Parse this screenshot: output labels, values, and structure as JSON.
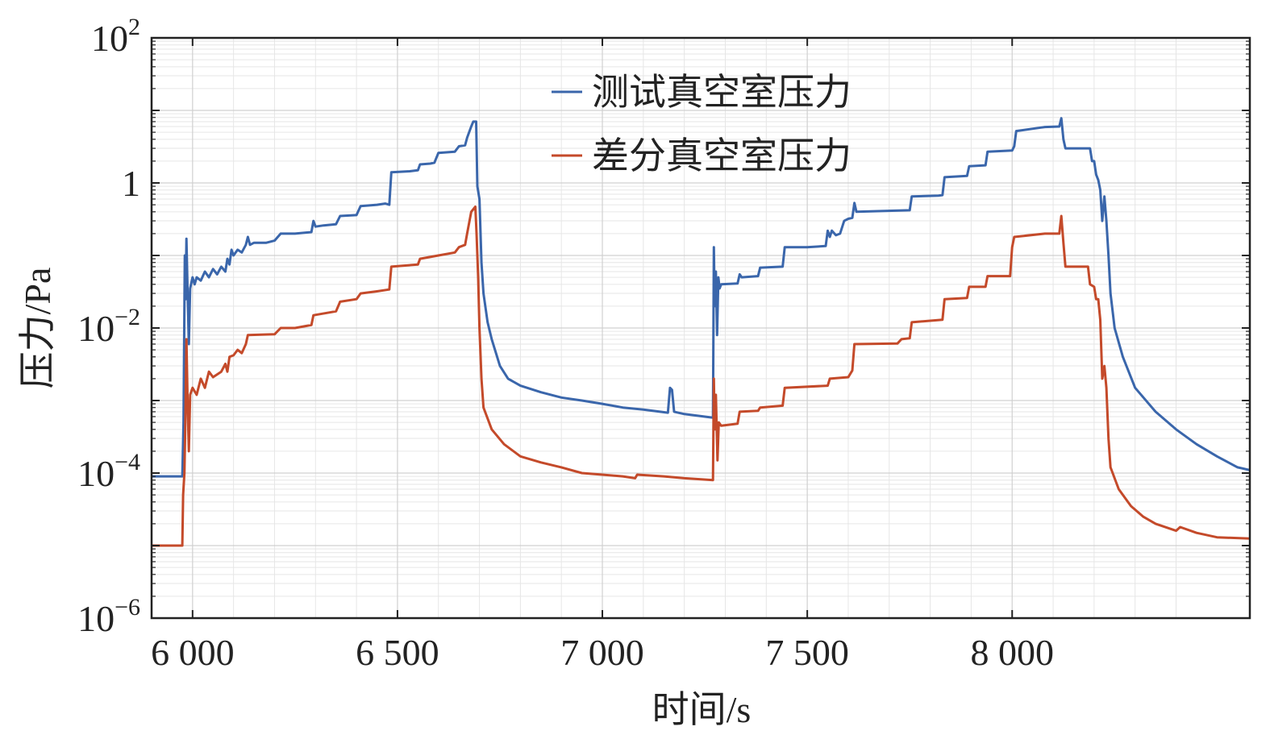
{
  "chart_data": {
    "type": "line",
    "xlabel": "时间/s",
    "ylabel": "压力/Pa",
    "xlim": [
      5900,
      8580
    ],
    "ylim_log10": [
      -6,
      2
    ],
    "yscale": "log",
    "grid": true,
    "legend_position": "top-center",
    "x_ticks": [
      {
        "value": 6000,
        "label": "6 000"
      },
      {
        "value": 6500,
        "label": "6 500"
      },
      {
        "value": 7000,
        "label": "7 000"
      },
      {
        "value": 7500,
        "label": "7 500"
      },
      {
        "value": 8000,
        "label": "8 000"
      }
    ],
    "y_ticks": [
      {
        "value": 100,
        "base": "10",
        "exp": "2"
      },
      {
        "value": 1,
        "base": "1",
        "exp": ""
      },
      {
        "value": 0.01,
        "base": "10",
        "exp": "−2"
      },
      {
        "value": 0.0001,
        "base": "10",
        "exp": "−4"
      },
      {
        "value": 1e-06,
        "base": "10",
        "exp": "−6"
      }
    ],
    "series": [
      {
        "name": "测试真空室压力",
        "color": "#3a66ab",
        "points": [
          [
            5900,
            9e-05
          ],
          [
            5975,
            9e-05
          ],
          [
            5978,
            0.0005
          ],
          [
            5981,
            0.1
          ],
          [
            5983,
            0.025
          ],
          [
            5985,
            0.17
          ],
          [
            5988,
            0.03
          ],
          [
            5991,
            0.006
          ],
          [
            5994,
            0.035
          ],
          [
            6000,
            0.05
          ],
          [
            6005,
            0.04
          ],
          [
            6010,
            0.05
          ],
          [
            6020,
            0.045
          ],
          [
            6030,
            0.06
          ],
          [
            6040,
            0.05
          ],
          [
            6050,
            0.065
          ],
          [
            6060,
            0.055
          ],
          [
            6070,
            0.07
          ],
          [
            6080,
            0.06
          ],
          [
            6085,
            0.09
          ],
          [
            6090,
            0.075
          ],
          [
            6095,
            0.12
          ],
          [
            6100,
            0.1
          ],
          [
            6110,
            0.12
          ],
          [
            6120,
            0.11
          ],
          [
            6130,
            0.14
          ],
          [
            6135,
            0.18
          ],
          [
            6140,
            0.14
          ],
          [
            6150,
            0.15
          ],
          [
            6180,
            0.15
          ],
          [
            6200,
            0.16
          ],
          [
            6215,
            0.2
          ],
          [
            6250,
            0.2
          ],
          [
            6290,
            0.21
          ],
          [
            6295,
            0.3
          ],
          [
            6300,
            0.25
          ],
          [
            6320,
            0.26
          ],
          [
            6350,
            0.27
          ],
          [
            6360,
            0.35
          ],
          [
            6400,
            0.36
          ],
          [
            6410,
            0.48
          ],
          [
            6450,
            0.5
          ],
          [
            6470,
            0.52
          ],
          [
            6480,
            0.5
          ],
          [
            6485,
            1.4
          ],
          [
            6530,
            1.45
          ],
          [
            6550,
            1.5
          ],
          [
            6555,
            1.8
          ],
          [
            6580,
            1.85
          ],
          [
            6590,
            1.9
          ],
          [
            6600,
            2.6
          ],
          [
            6640,
            2.7
          ],
          [
            6650,
            3.2
          ],
          [
            6665,
            3.3
          ],
          [
            6670,
            4.2
          ],
          [
            6680,
            6.0
          ],
          [
            6685,
            7.0
          ],
          [
            6692,
            7.0
          ],
          [
            6695,
            0.9
          ],
          [
            6700,
            0.6
          ],
          [
            6705,
            0.08
          ],
          [
            6710,
            0.03
          ],
          [
            6720,
            0.012
          ],
          [
            6730,
            0.007
          ],
          [
            6750,
            0.003
          ],
          [
            6770,
            0.002
          ],
          [
            6800,
            0.0016
          ],
          [
            6850,
            0.0013
          ],
          [
            6900,
            0.0011
          ],
          [
            6950,
            0.001
          ],
          [
            7000,
            0.0009
          ],
          [
            7050,
            0.0008
          ],
          [
            7100,
            0.00075
          ],
          [
            7160,
            0.00068
          ],
          [
            7165,
            0.0015
          ],
          [
            7170,
            0.0014
          ],
          [
            7175,
            0.0007
          ],
          [
            7200,
            0.00065
          ],
          [
            7250,
            0.0006
          ],
          [
            7270,
            0.00058
          ],
          [
            7272,
            0.13
          ],
          [
            7274,
            0.02
          ],
          [
            7277,
            0.06
          ],
          [
            7280,
            0.008
          ],
          [
            7283,
            0.05
          ],
          [
            7286,
            0.035
          ],
          [
            7290,
            0.04
          ],
          [
            7330,
            0.041
          ],
          [
            7335,
            0.055
          ],
          [
            7340,
            0.05
          ],
          [
            7380,
            0.052
          ],
          [
            7385,
            0.068
          ],
          [
            7440,
            0.07
          ],
          [
            7445,
            0.13
          ],
          [
            7500,
            0.13
          ],
          [
            7545,
            0.135
          ],
          [
            7550,
            0.22
          ],
          [
            7555,
            0.18
          ],
          [
            7560,
            0.22
          ],
          [
            7570,
            0.19
          ],
          [
            7580,
            0.2
          ],
          [
            7590,
            0.3
          ],
          [
            7600,
            0.32
          ],
          [
            7610,
            0.33
          ],
          [
            7615,
            0.53
          ],
          [
            7620,
            0.4
          ],
          [
            7750,
            0.42
          ],
          [
            7755,
            0.65
          ],
          [
            7820,
            0.67
          ],
          [
            7830,
            0.68
          ],
          [
            7835,
            1.2
          ],
          [
            7890,
            1.25
          ],
          [
            7895,
            1.7
          ],
          [
            7935,
            1.75
          ],
          [
            7940,
            2.7
          ],
          [
            8000,
            2.8
          ],
          [
            8005,
            3.2
          ],
          [
            8010,
            5.2
          ],
          [
            8070,
            5.8
          ],
          [
            8080,
            5.9
          ],
          [
            8115,
            6.0
          ],
          [
            8120,
            7.8
          ],
          [
            8125,
            4.0
          ],
          [
            8130,
            3.0
          ],
          [
            8190,
            3.0
          ],
          [
            8195,
            2.0
          ],
          [
            8200,
            2.0
          ],
          [
            8205,
            1.3
          ],
          [
            8210,
            1.1
          ],
          [
            8215,
            0.8
          ],
          [
            8220,
            0.3
          ],
          [
            8225,
            0.65
          ],
          [
            8230,
            0.3
          ],
          [
            8235,
            0.1
          ],
          [
            8240,
            0.03
          ],
          [
            8250,
            0.01
          ],
          [
            8270,
            0.004
          ],
          [
            8300,
            0.0015
          ],
          [
            8350,
            0.0007
          ],
          [
            8400,
            0.0004
          ],
          [
            8450,
            0.00025
          ],
          [
            8500,
            0.00017
          ],
          [
            8550,
            0.00012
          ],
          [
            8580,
            0.00011
          ]
        ]
      },
      {
        "name": "差分真空室压力",
        "color": "#c44a2a",
        "points": [
          [
            5900,
            1e-05
          ],
          [
            5975,
            1e-05
          ],
          [
            5977,
            5e-05
          ],
          [
            5980,
            0.0001
          ],
          [
            5982,
            0.0004
          ],
          [
            5985,
            0.007
          ],
          [
            5988,
            0.0009
          ],
          [
            5991,
            0.0002
          ],
          [
            5994,
            0.0012
          ],
          [
            6000,
            0.0015
          ],
          [
            6010,
            0.0012
          ],
          [
            6020,
            0.002
          ],
          [
            6030,
            0.0015
          ],
          [
            6040,
            0.0025
          ],
          [
            6050,
            0.0021
          ],
          [
            6070,
            0.0025
          ],
          [
            6080,
            0.0032
          ],
          [
            6085,
            0.0025
          ],
          [
            6090,
            0.004
          ],
          [
            6100,
            0.0042
          ],
          [
            6110,
            0.005
          ],
          [
            6120,
            0.0045
          ],
          [
            6130,
            0.006
          ],
          [
            6135,
            0.008
          ],
          [
            6200,
            0.0082
          ],
          [
            6215,
            0.01
          ],
          [
            6250,
            0.01
          ],
          [
            6290,
            0.011
          ],
          [
            6295,
            0.015
          ],
          [
            6350,
            0.017
          ],
          [
            6360,
            0.023
          ],
          [
            6400,
            0.025
          ],
          [
            6410,
            0.03
          ],
          [
            6450,
            0.032
          ],
          [
            6480,
            0.034
          ],
          [
            6485,
            0.07
          ],
          [
            6550,
            0.075
          ],
          [
            6555,
            0.09
          ],
          [
            6600,
            0.1
          ],
          [
            6640,
            0.11
          ],
          [
            6650,
            0.13
          ],
          [
            6665,
            0.14
          ],
          [
            6670,
            0.2
          ],
          [
            6680,
            0.4
          ],
          [
            6690,
            0.47
          ],
          [
            6693,
            0.2
          ],
          [
            6697,
            0.05
          ],
          [
            6700,
            0.01
          ],
          [
            6705,
            0.002
          ],
          [
            6710,
            0.0008
          ],
          [
            6730,
            0.0004
          ],
          [
            6760,
            0.00025
          ],
          [
            6800,
            0.00017
          ],
          [
            6850,
            0.00014
          ],
          [
            6900,
            0.00012
          ],
          [
            6950,
            0.0001
          ],
          [
            7000,
            9.5e-05
          ],
          [
            7050,
            9e-05
          ],
          [
            7080,
            8.5e-05
          ],
          [
            7085,
            9.5e-05
          ],
          [
            7150,
            9e-05
          ],
          [
            7200,
            8.5e-05
          ],
          [
            7270,
            8e-05
          ],
          [
            7272,
            0.002
          ],
          [
            7274,
            0.0004
          ],
          [
            7277,
            0.0012
          ],
          [
            7281,
            0.00015
          ],
          [
            7284,
            0.0005
          ],
          [
            7290,
            0.00045
          ],
          [
            7330,
            0.00048
          ],
          [
            7335,
            0.0007
          ],
          [
            7380,
            0.00072
          ],
          [
            7385,
            0.0008
          ],
          [
            7440,
            0.00085
          ],
          [
            7445,
            0.0015
          ],
          [
            7550,
            0.0016
          ],
          [
            7555,
            0.002
          ],
          [
            7600,
            0.0021
          ],
          [
            7610,
            0.0026
          ],
          [
            7615,
            0.006
          ],
          [
            7720,
            0.0061
          ],
          [
            7730,
            0.007
          ],
          [
            7750,
            0.0072
          ],
          [
            7755,
            0.012
          ],
          [
            7830,
            0.013
          ],
          [
            7835,
            0.025
          ],
          [
            7890,
            0.026
          ],
          [
            7895,
            0.037
          ],
          [
            7935,
            0.037
          ],
          [
            7940,
            0.052
          ],
          [
            7995,
            0.052
          ],
          [
            8000,
            0.13
          ],
          [
            8005,
            0.18
          ],
          [
            8080,
            0.2
          ],
          [
            8115,
            0.2
          ],
          [
            8120,
            0.35
          ],
          [
            8125,
            0.15
          ],
          [
            8130,
            0.07
          ],
          [
            8185,
            0.07
          ],
          [
            8190,
            0.04
          ],
          [
            8200,
            0.037
          ],
          [
            8205,
            0.025
          ],
          [
            8210,
            0.025
          ],
          [
            8215,
            0.013
          ],
          [
            8220,
            0.002
          ],
          [
            8225,
            0.003
          ],
          [
            8230,
            0.0015
          ],
          [
            8235,
            0.0003
          ],
          [
            8240,
            0.00012
          ],
          [
            8260,
            6e-05
          ],
          [
            8290,
            3.5e-05
          ],
          [
            8320,
            2.5e-05
          ],
          [
            8350,
            2e-05
          ],
          [
            8400,
            1.6e-05
          ],
          [
            8410,
            1.8e-05
          ],
          [
            8450,
            1.5e-05
          ],
          [
            8500,
            1.3e-05
          ],
          [
            8580,
            1.25e-05
          ]
        ]
      }
    ]
  }
}
